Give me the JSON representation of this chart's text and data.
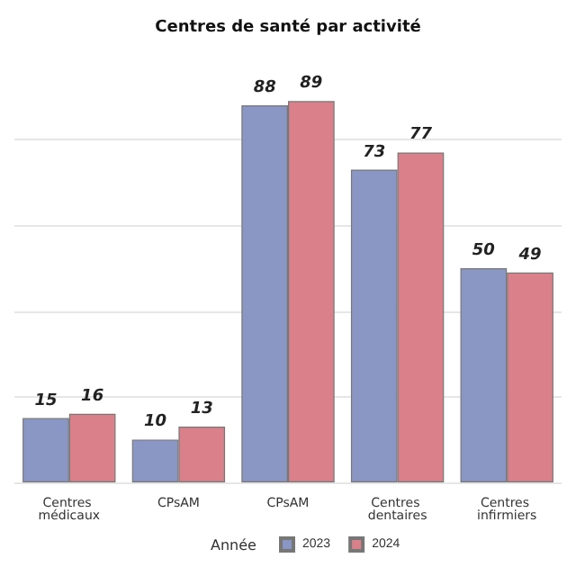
{
  "chart_data": {
    "type": "bar",
    "title": "Centres de santé par activité",
    "legend_title": "Année",
    "categories": [
      "Centres médicaux",
      "CPsAM",
      "CPsAM",
      "Centres dentaires",
      "Centres infirmiers"
    ],
    "series": [
      {
        "name": "2023",
        "color": "#8a96c4",
        "values": [
          15,
          10,
          88,
          73,
          50
        ]
      },
      {
        "name": "2024",
        "color": "#d9808a",
        "values": [
          16,
          13,
          89,
          77,
          49
        ]
      }
    ],
    "yticks": [
      {
        "value": 0,
        "label": null
      },
      {
        "value": 20,
        "label": null
      },
      {
        "value": 40,
        "label": null
      },
      {
        "value": 60,
        "label": null
      },
      {
        "value": 80,
        "label": null
      }
    ],
    "grid": "y",
    "legend": "bottom",
    "data_labels": true,
    "tick_labels": "x"
  }
}
